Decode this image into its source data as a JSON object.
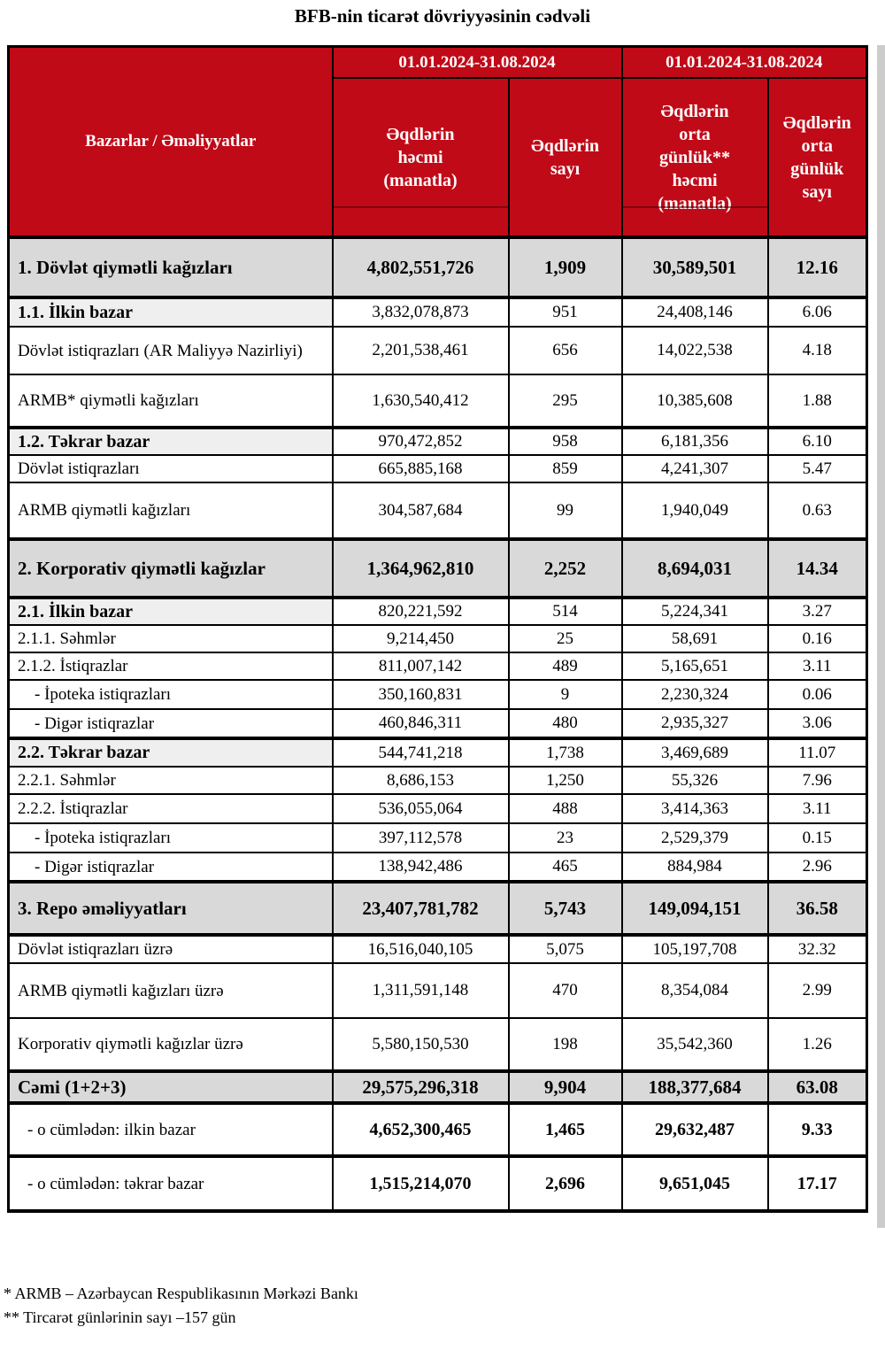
{
  "title": "BFB-nin ticarət dövriyyəsinin cədvəli",
  "colors": {
    "header_red": "#c00a18",
    "section_gray": "#d9d9d9",
    "subheader_gray": "#efefef",
    "edge_gray": "#cccccc"
  },
  "table": {
    "corner_label": "Bazarlar / Əməliyyatlar",
    "period_headers": [
      "01.01.2024-31.08.2024",
      "01.01.2024-31.08.2024"
    ],
    "column_headers": [
      "Əqdlərin\nhəcmi\n(manatla)",
      "Əqdlərin\nsayı",
      "Əqdlərin\norta\ngünlük**\nhəcmi\n(manatla)",
      "Əqdlərin\norta\ngünlük\nsayı"
    ],
    "rows": [
      {
        "style": "section",
        "label": "1. Dövlət qiymətli kağızları",
        "values": [
          "4,802,551,726",
          "1,909",
          "30,589,501",
          "12.16"
        ]
      },
      {
        "style": "subheader",
        "label": "1.1. İlkin bazar",
        "values": [
          "3,832,078,873",
          "951",
          "24,408,146",
          "6.06"
        ]
      },
      {
        "style": "item",
        "label": "Dövlət istiqrazları (AR Maliyyə Nazirliyi)",
        "values": [
          "2,201,538,461",
          "656",
          "14,022,538",
          "4.18"
        ]
      },
      {
        "style": "item",
        "label": "ARMB* qiymətli kağızları",
        "values": [
          "1,630,540,412",
          "295",
          "10,385,608",
          "1.88"
        ]
      },
      {
        "style": "subheader",
        "label": "1.2. Təkrar bazar",
        "values": [
          "970,472,852",
          "958",
          "6,181,356",
          "6.10"
        ]
      },
      {
        "style": "item",
        "label": "Dövlət istiqrazları",
        "values": [
          "665,885,168",
          "859",
          "4,241,307",
          "5.47"
        ]
      },
      {
        "style": "item",
        "label": "ARMB qiymətli kağızları",
        "values": [
          "304,587,684",
          "99",
          "1,940,049",
          "0.63"
        ]
      },
      {
        "style": "section",
        "label": "2. Korporativ qiymətli kağızlar",
        "values": [
          "1,364,962,810",
          "2,252",
          "8,694,031",
          "14.34"
        ]
      },
      {
        "style": "subheader",
        "label": "2.1. İlkin bazar",
        "values": [
          "820,221,592",
          "514",
          "5,224,341",
          "3.27"
        ]
      },
      {
        "style": "item",
        "label": "2.1.1. Səhmlər",
        "values": [
          "9,214,450",
          "25",
          "58,691",
          "0.16"
        ]
      },
      {
        "style": "item",
        "label": "2.1.2. İstiqrazlar",
        "values": [
          "811,007,142",
          "489",
          "5,165,651",
          "3.11"
        ]
      },
      {
        "style": "subitem",
        "label": "- İpoteka istiqrazları",
        "values": [
          "350,160,831",
          "9",
          "2,230,324",
          "0.06"
        ]
      },
      {
        "style": "subitem",
        "label": "- Digər istiqrazlar",
        "values": [
          "460,846,311",
          "480",
          "2,935,327",
          "3.06"
        ]
      },
      {
        "style": "subheader",
        "label": "2.2. Təkrar bazar",
        "values": [
          "544,741,218",
          "1,738",
          "3,469,689",
          "11.07"
        ]
      },
      {
        "style": "item",
        "label": "2.2.1. Səhmlər",
        "values": [
          "8,686,153",
          "1,250",
          "55,326",
          "7.96"
        ]
      },
      {
        "style": "item",
        "label": "2.2.2. İstiqrazlar",
        "values": [
          "536,055,064",
          "488",
          "3,414,363",
          "3.11"
        ]
      },
      {
        "style": "subitem",
        "label": "- İpoteka istiqrazları",
        "values": [
          "397,112,578",
          "23",
          "2,529,379",
          "0.15"
        ]
      },
      {
        "style": "subitem",
        "label": "- Digər istiqrazlar",
        "values": [
          "138,942,486",
          "465",
          "884,984",
          "2.96"
        ]
      },
      {
        "style": "section",
        "label": "3. Repo əməliyyatları",
        "values": [
          "23,407,781,782",
          "5,743",
          "149,094,151",
          "36.58"
        ]
      },
      {
        "style": "item",
        "label": "Dövlət istiqrazları üzrə",
        "values": [
          "16,516,040,105",
          "5,075",
          "105,197,708",
          "32.32"
        ]
      },
      {
        "style": "item",
        "label": "ARMB qiymətli kağızları üzrə",
        "values": [
          "1,311,591,148",
          "470",
          "8,354,084",
          "2.99"
        ]
      },
      {
        "style": "item",
        "label": "Korporativ qiymətli kağızlar üzrə",
        "values": [
          "5,580,150,530",
          "198",
          "35,542,360",
          "1.26"
        ]
      },
      {
        "style": "section",
        "label": "Cəmi (1+2+3)",
        "values": [
          "29,575,296,318",
          "9,904",
          "188,377,684",
          "63.08"
        ]
      },
      {
        "style": "total",
        "label": "- o cümlədən: ilkin bazar",
        "values": [
          "4,652,300,465",
          "1,465",
          "29,632,487",
          "9.33"
        ]
      },
      {
        "style": "total",
        "label": "- o cümlədən: təkrar bazar",
        "values": [
          "1,515,214,070",
          "2,696",
          "9,651,045",
          "17.17"
        ]
      }
    ]
  },
  "footnotes": [
    "* ARMB – Azərbaycan Respublikasının Mərkəzi Bankı",
    "** Tircarət günlərinin sayı –157 gün"
  ]
}
